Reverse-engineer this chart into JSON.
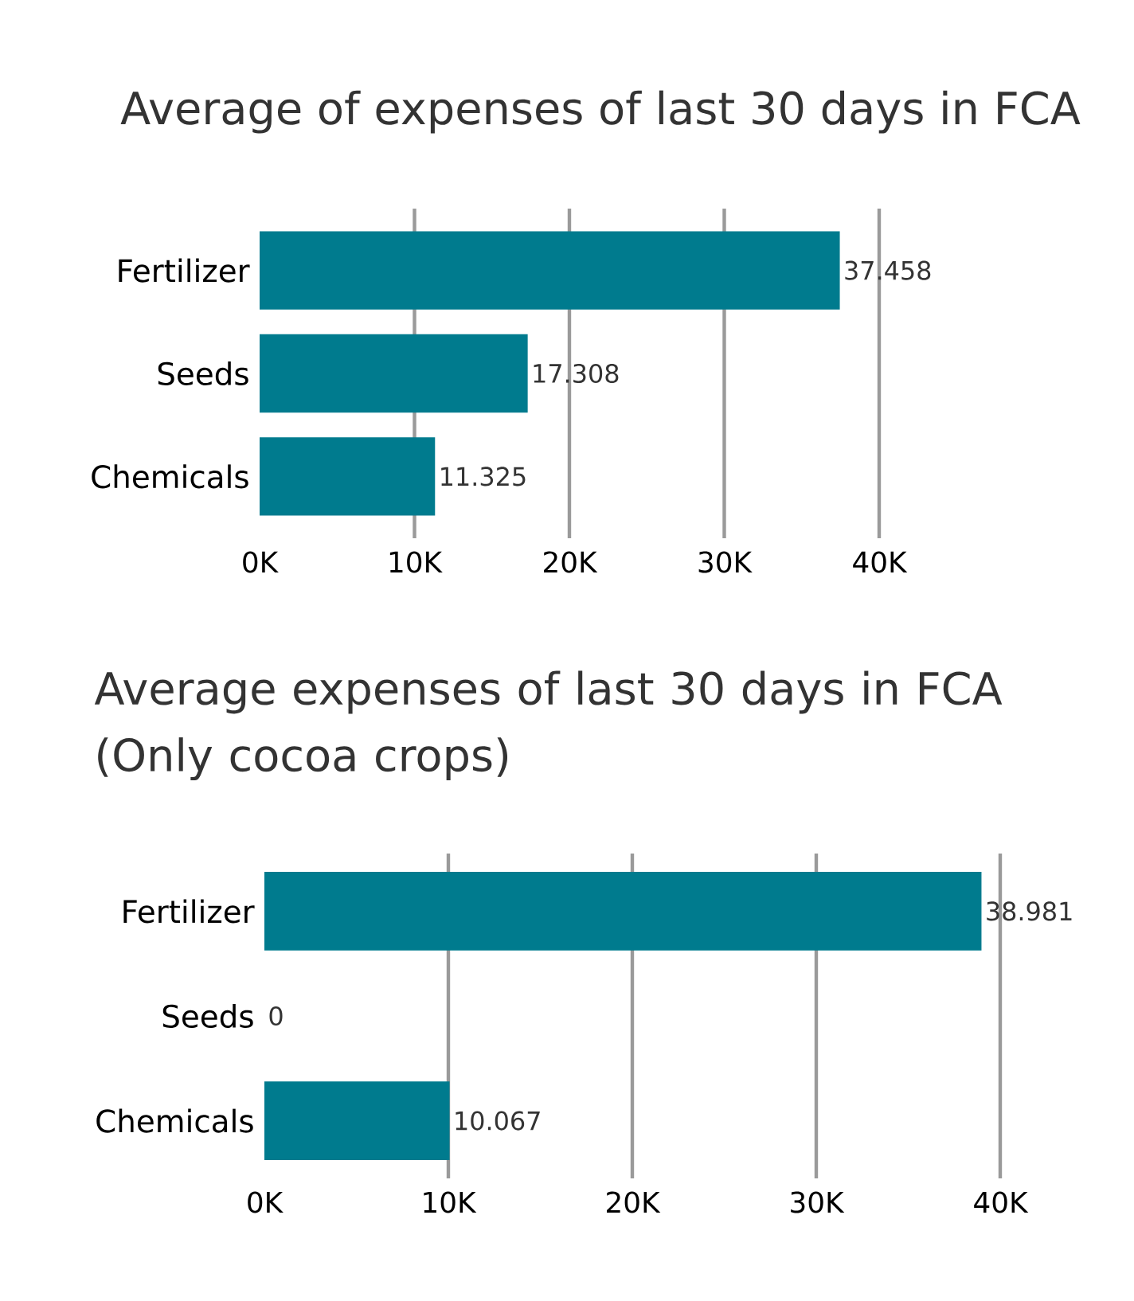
{
  "chart_data": [
    {
      "type": "bar",
      "orientation": "horizontal",
      "title": "Average of expenses of last 30 days in FCA",
      "categories": [
        "Fertilizer",
        "Seeds",
        "Chemicals"
      ],
      "values": [
        37458,
        17308,
        11325
      ],
      "value_labels": [
        "37.458",
        "17.308",
        "11.325"
      ],
      "color": "#007b8e",
      "xlim": [
        0,
        40000
      ],
      "xticks": [
        {
          "value": 0,
          "label": "0K"
        },
        {
          "value": 10000,
          "label": "10K"
        },
        {
          "value": 20000,
          "label": "20K"
        },
        {
          "value": 30000,
          "label": "30K"
        },
        {
          "value": 40000,
          "label": "40K"
        }
      ],
      "grid": "x"
    },
    {
      "type": "bar",
      "orientation": "horizontal",
      "title": "Average expenses of last 30 days in FCA (Only cocoa crops)",
      "categories": [
        "Fertilizer",
        "Seeds",
        "Chemicals"
      ],
      "values": [
        38981,
        0,
        10067
      ],
      "value_labels": [
        "38.981",
        "0",
        "10.067"
      ],
      "color": "#007b8e",
      "xlim": [
        0,
        40000
      ],
      "xticks": [
        {
          "value": 0,
          "label": "0K"
        },
        {
          "value": 10000,
          "label": "10K"
        },
        {
          "value": 20000,
          "label": "20K"
        },
        {
          "value": 30000,
          "label": "30K"
        },
        {
          "value": 40000,
          "label": "40K"
        }
      ],
      "grid": "x"
    }
  ]
}
